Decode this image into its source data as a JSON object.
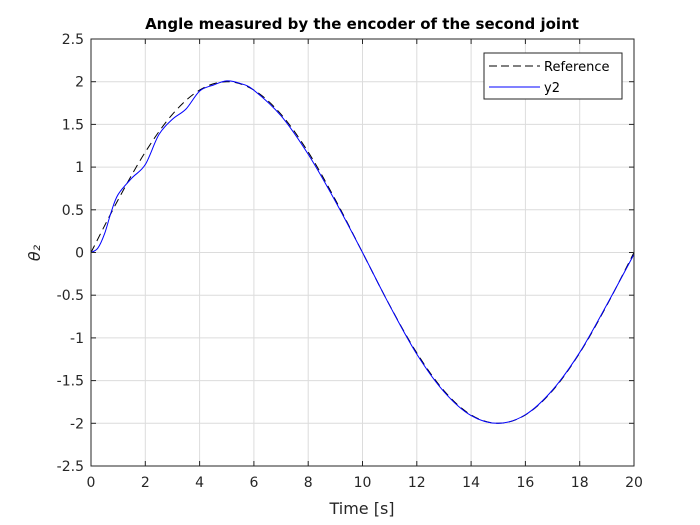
{
  "chart_data": {
    "type": "line",
    "title": "Angle measured by the encoder of the second joint",
    "xlabel": "Time [s]",
    "ylabel": "θ₂",
    "xlim": [
      0,
      20
    ],
    "ylim": [
      -2.5,
      2.5
    ],
    "xticks": [
      0,
      2,
      4,
      6,
      8,
      10,
      12,
      14,
      16,
      18,
      20
    ],
    "yticks": [
      -2.5,
      -2,
      -1.5,
      -1,
      -0.5,
      0,
      0.5,
      1,
      1.5,
      2,
      2.5
    ],
    "xtick_labels": [
      "0",
      "2",
      "4",
      "6",
      "8",
      "10",
      "12",
      "14",
      "16",
      "18",
      "20"
    ],
    "ytick_labels": [
      "-2.5",
      "-2",
      "-1.5",
      "-1",
      "-0.5",
      "0",
      "0.5",
      "1",
      "1.5",
      "2",
      "2.5"
    ],
    "grid": true,
    "legend_position": "top-right",
    "series": [
      {
        "name": "Reference",
        "color": "#000000",
        "style": "dashed",
        "x": [
          0,
          1,
          2,
          3,
          4,
          5,
          6,
          7,
          8,
          9,
          10,
          11,
          12,
          13,
          14,
          15,
          16,
          17,
          18,
          19,
          20
        ],
        "y": [
          0,
          0.618,
          1.176,
          1.618,
          1.902,
          2.0,
          1.902,
          1.618,
          1.176,
          0.618,
          0,
          -0.618,
          -1.176,
          -1.618,
          -1.902,
          -2.0,
          -1.902,
          -1.618,
          -1.176,
          -0.618,
          0
        ]
      },
      {
        "name": "y2",
        "color": "#0000ff",
        "style": "solid",
        "x": [
          0,
          0.25,
          0.5,
          0.75,
          1,
          1.5,
          2,
          2.5,
          3,
          3.5,
          4,
          4.5,
          5,
          5.5,
          6,
          7,
          8,
          9,
          10,
          11,
          12,
          13,
          14,
          15,
          16,
          17,
          18,
          19,
          20
        ],
        "y": [
          0,
          0.05,
          0.22,
          0.48,
          0.68,
          0.87,
          1.03,
          1.38,
          1.56,
          1.68,
          1.89,
          1.96,
          2.01,
          1.98,
          1.9,
          1.6,
          1.15,
          0.6,
          0,
          -0.62,
          -1.19,
          -1.63,
          -1.91,
          -2.0,
          -1.9,
          -1.61,
          -1.17,
          -0.61,
          -0.02
        ]
      }
    ]
  }
}
